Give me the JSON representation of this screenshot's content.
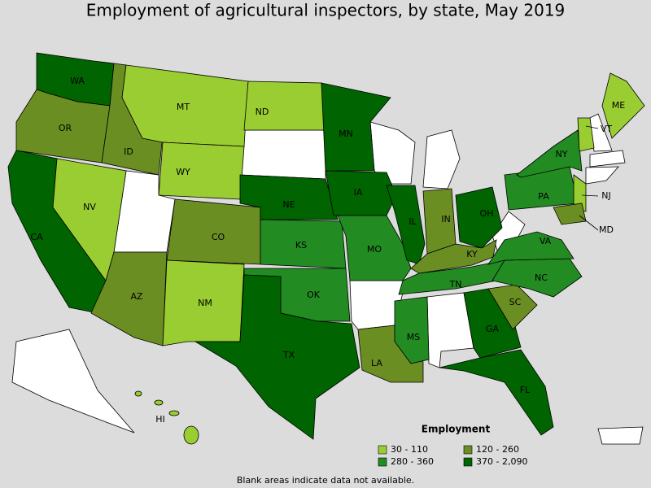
{
  "title": "Employment of agricultural inspectors, by state, May 2019",
  "legend": {
    "title": "Employment",
    "classes": [
      {
        "label": "30 - 110",
        "color": "#9acd32"
      },
      {
        "label": "120 - 260",
        "color": "#6b8e23"
      },
      {
        "label": "280 - 360",
        "color": "#228b22"
      },
      {
        "label": "370 - 2,090",
        "color": "#006400"
      }
    ]
  },
  "states": [
    {
      "label": "WA",
      "class": 3
    },
    {
      "label": "OR",
      "class": 1
    },
    {
      "label": "CA",
      "class": 3
    },
    {
      "label": "NV",
      "class": 0
    },
    {
      "label": "ID",
      "class": 1
    },
    {
      "label": "MT",
      "class": 0
    },
    {
      "label": "WY",
      "class": 0
    },
    {
      "label": "AZ",
      "class": 1
    },
    {
      "label": "CO",
      "class": 1
    },
    {
      "label": "NM",
      "class": 0
    },
    {
      "label": "ND",
      "class": 0
    },
    {
      "label": "NE",
      "class": 3
    },
    {
      "label": "KS",
      "class": 2
    },
    {
      "label": "OK",
      "class": 2
    },
    {
      "label": "TX",
      "class": 3
    },
    {
      "label": "MN",
      "class": 3
    },
    {
      "label": "IA",
      "class": 3
    },
    {
      "label": "MO",
      "class": 2
    },
    {
      "label": "LA",
      "class": 1
    },
    {
      "label": "IL",
      "class": 3
    },
    {
      "label": "IN",
      "class": 1
    },
    {
      "label": "OH",
      "class": 3
    },
    {
      "label": "KY",
      "class": 1
    },
    {
      "label": "TN",
      "class": 2
    },
    {
      "label": "MS",
      "class": 2
    },
    {
      "label": "GA",
      "class": 3
    },
    {
      "label": "FL",
      "class": 3
    },
    {
      "label": "SC",
      "class": 1
    },
    {
      "label": "NC",
      "class": 2
    },
    {
      "label": "VA",
      "class": 2
    },
    {
      "label": "PA",
      "class": 2
    },
    {
      "label": "NY",
      "class": 2
    },
    {
      "label": "VT",
      "class": 0
    },
    {
      "label": "ME",
      "class": 0
    },
    {
      "label": "NJ",
      "class": 0
    },
    {
      "label": "MD",
      "class": 1
    },
    {
      "label": "HI",
      "class": 0
    }
  ],
  "note": "Blank areas indicate data not available."
}
